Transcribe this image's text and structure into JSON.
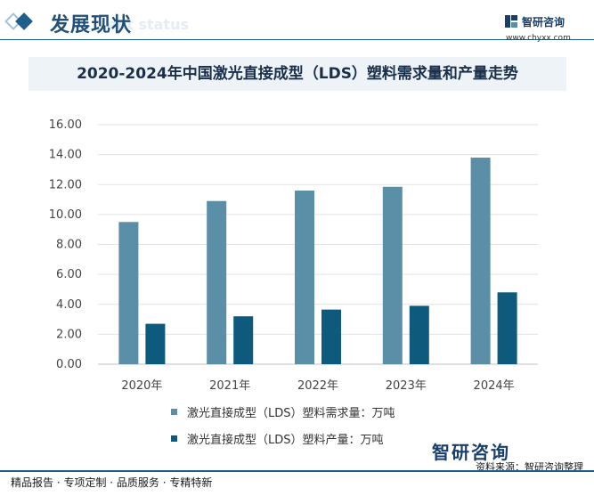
{
  "header": {
    "section_title": "发展现状",
    "section_subtitle": "ent status",
    "logo_name": "智研咨询",
    "logo_url": "www.chyxx.com"
  },
  "colors": {
    "demand": "#5b8fa8",
    "production": "#0d5a7d",
    "accent": "#1f5f8b"
  },
  "chart_data": {
    "type": "bar",
    "title": "2020-2024年中国激光直接成型（LDS）塑料需求量和产量走势",
    "categories": [
      "2020年",
      "2021年",
      "2022年",
      "2023年",
      "2024年"
    ],
    "series": [
      {
        "name": "激光直接成型（LDS）塑料需求量：万吨",
        "values": [
          9.5,
          10.9,
          11.6,
          11.85,
          13.8
        ]
      },
      {
        "name": "激光直接成型（LDS）塑料产量：万吨",
        "values": [
          2.7,
          3.2,
          3.65,
          3.9,
          4.8
        ]
      }
    ],
    "yticks": [
      "0.00",
      "2.00",
      "4.00",
      "6.00",
      "8.00",
      "10.00",
      "12.00",
      "14.00",
      "16.00"
    ],
    "ylim": [
      0,
      16
    ],
    "grid": true,
    "legend": "bottom"
  },
  "footer": {
    "left_text": "精品报告 · 专项定制 · 品质服务 · 专精特新",
    "source_text": "资料来源：智研咨询整理",
    "logo_text": "智研咨询"
  }
}
